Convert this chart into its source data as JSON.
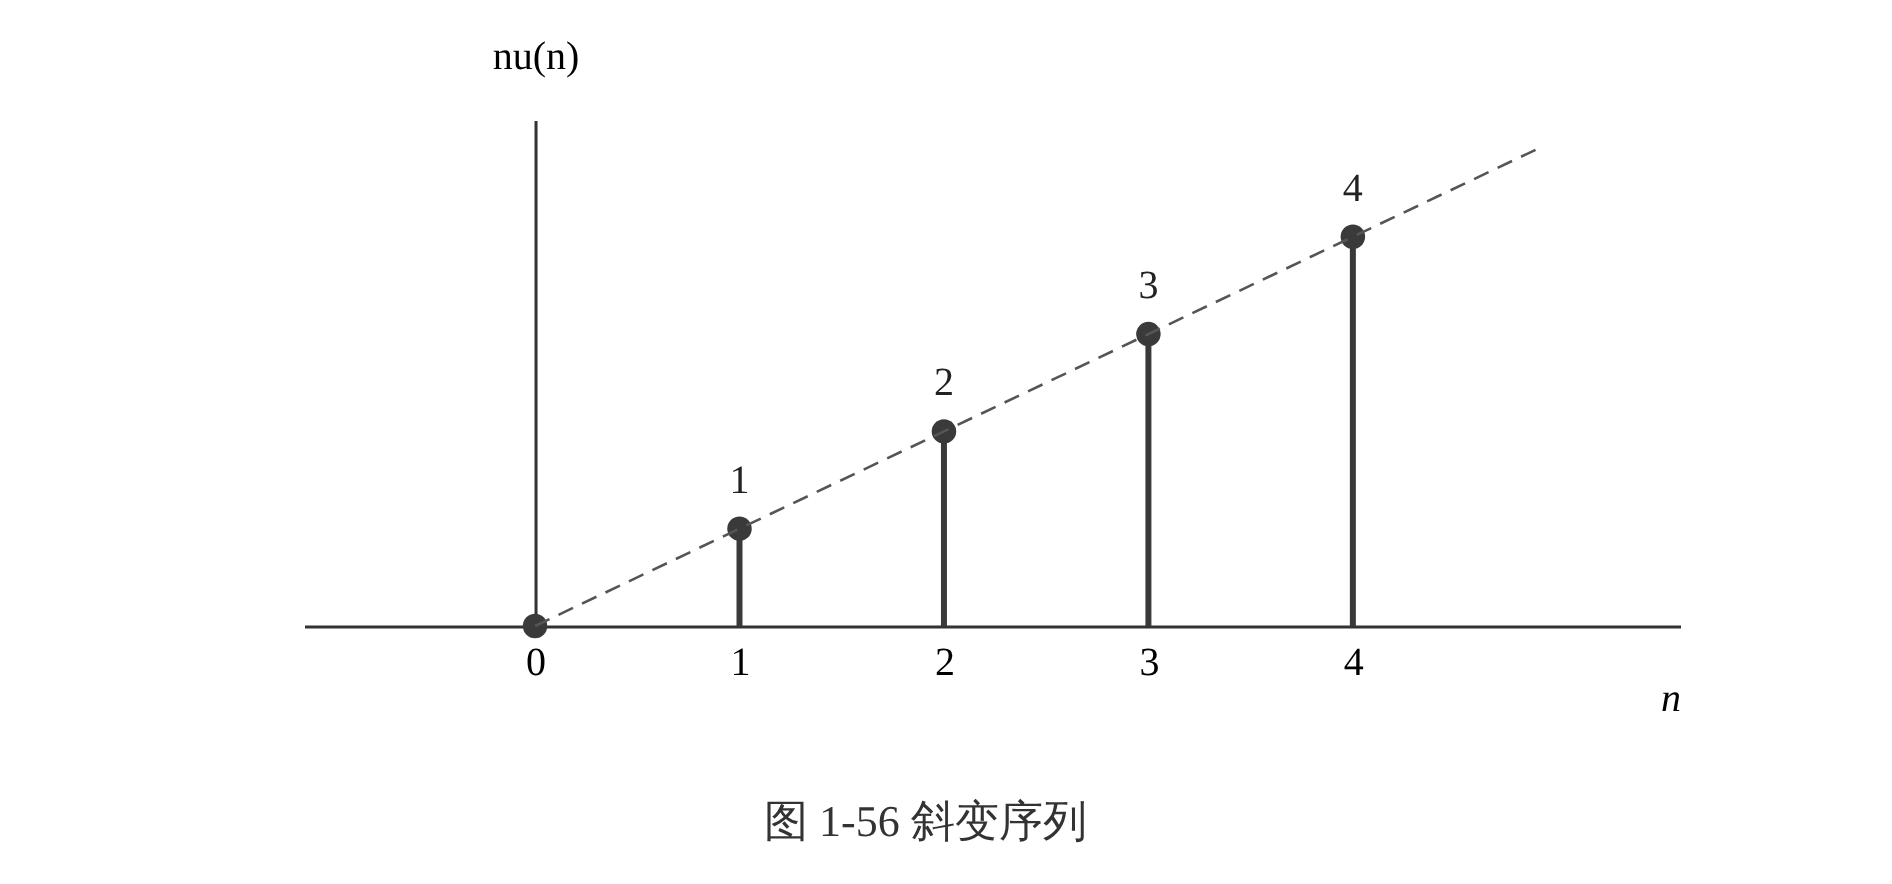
{
  "chart_data": {
    "type": "lollipop",
    "title": "图 1-56   斜变序列",
    "xlabel": "n",
    "ylabel": "nu(n)",
    "xlim": [
      -1.13,
      5.6
    ],
    "xticks": [
      0,
      1,
      2,
      3,
      4
    ],
    "ylim": [
      0,
      5.2
    ],
    "tick_labels": "x",
    "grid": false,
    "series": [
      {
        "x": [
          0,
          1,
          2,
          3,
          4
        ],
        "values": [
          0,
          1,
          2,
          3,
          4
        ],
        "color": "#3a3a3a",
        "marker": "circle",
        "value_labels": [
          null,
          "1",
          "2",
          "3",
          "4"
        ]
      },
      {
        "type": "line",
        "x": [
          0,
          4.9
        ],
        "values": [
          0,
          4.9
        ],
        "color": "#555555",
        "line_style": "dashed"
      }
    ]
  }
}
